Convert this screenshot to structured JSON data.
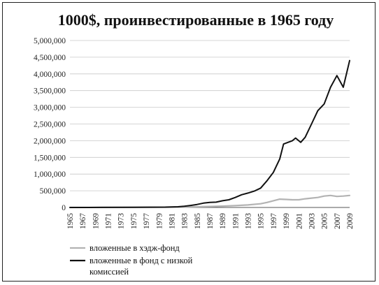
{
  "chart_data": {
    "type": "line",
    "title": "1000$, проинвестированные в 1965 году",
    "xlabel": "",
    "ylabel": "",
    "xlim": [
      1965,
      2009
    ],
    "ylim": [
      0,
      5000000
    ],
    "y_ticks": [
      0,
      500000,
      1000000,
      1500000,
      2000000,
      2500000,
      3000000,
      3500000,
      4000000,
      4500000,
      5000000
    ],
    "y_tick_labels": [
      "0",
      "500,000",
      "1,000,000",
      "1,500,000",
      "2,000,000",
      "2,500,000",
      "3,000,000",
      "3,500,000",
      "4,000,000",
      "4,500,000",
      "5,000,000"
    ],
    "x_tick_labels": [
      "1965",
      "1967",
      "1969",
      "1971",
      "1973",
      "1975",
      "1977",
      "1979",
      "1981",
      "1983",
      "1985",
      "1987",
      "1989",
      "1991",
      "1993",
      "1995",
      "1997",
      "1999",
      "2001",
      "2003",
      "2005",
      "2007",
      "2009"
    ],
    "grid": true,
    "legend_position": "bottom-left",
    "series": [
      {
        "name": "вложенные в хэдж-фонд",
        "color": "#b3b3b3",
        "points": [
          [
            1965,
            1000
          ],
          [
            1970,
            2000
          ],
          [
            1975,
            4000
          ],
          [
            1980,
            8000
          ],
          [
            1983,
            12000
          ],
          [
            1985,
            20000
          ],
          [
            1987,
            30000
          ],
          [
            1989,
            40000
          ],
          [
            1991,
            55000
          ],
          [
            1993,
            75000
          ],
          [
            1995,
            110000
          ],
          [
            1996,
            150000
          ],
          [
            1997,
            200000
          ],
          [
            1998,
            250000
          ],
          [
            1999,
            240000
          ],
          [
            2000,
            230000
          ],
          [
            2001,
            230000
          ],
          [
            2002,
            260000
          ],
          [
            2003,
            280000
          ],
          [
            2004,
            300000
          ],
          [
            2005,
            340000
          ],
          [
            2006,
            360000
          ],
          [
            2007,
            330000
          ],
          [
            2008,
            340000
          ],
          [
            2009,
            360000
          ]
        ]
      },
      {
        "name": "вложенные в фонд с низкой комиссией",
        "name_lines": [
          "вложенные в фонд с низкой",
          "комиссией"
        ],
        "color": "#111111",
        "points": [
          [
            1965,
            1000
          ],
          [
            1970,
            3000
          ],
          [
            1975,
            6000
          ],
          [
            1980,
            10000
          ],
          [
            1982,
            20000
          ],
          [
            1983,
            35000
          ],
          [
            1984,
            60000
          ],
          [
            1985,
            90000
          ],
          [
            1986,
            130000
          ],
          [
            1987,
            150000
          ],
          [
            1988,
            160000
          ],
          [
            1989,
            200000
          ],
          [
            1990,
            230000
          ],
          [
            1991,
            300000
          ],
          [
            1992,
            380000
          ],
          [
            1993,
            430000
          ],
          [
            1994,
            490000
          ],
          [
            1995,
            580000
          ],
          [
            1996,
            800000
          ],
          [
            1997,
            1050000
          ],
          [
            1998,
            1450000
          ],
          [
            1998.6,
            1900000
          ],
          [
            1999.3,
            1950000
          ],
          [
            2000,
            2000000
          ],
          [
            2000.5,
            2080000
          ],
          [
            2001.3,
            1950000
          ],
          [
            2002,
            2100000
          ],
          [
            2003,
            2500000
          ],
          [
            2004,
            2900000
          ],
          [
            2005,
            3100000
          ],
          [
            2006,
            3600000
          ],
          [
            2007,
            3950000
          ],
          [
            2008,
            3600000
          ],
          [
            2009,
            4400000
          ]
        ]
      }
    ]
  }
}
